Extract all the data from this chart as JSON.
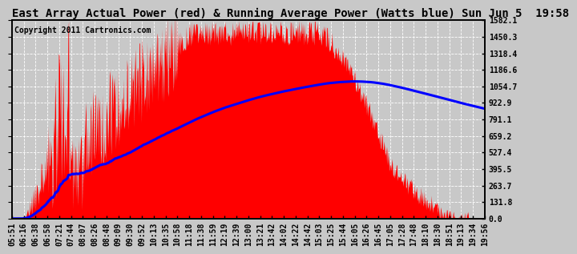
{
  "title": "East Array Actual Power (red) & Running Average Power (Watts blue) Sun Jun 5  19:58",
  "copyright": "Copyright 2011 Cartronics.com",
  "ylabel_right": [
    "0.0",
    "131.8",
    "263.7",
    "395.5",
    "527.4",
    "659.2",
    "791.1",
    "922.9",
    "1054.7",
    "1186.6",
    "1318.4",
    "1450.3",
    "1582.1"
  ],
  "ymax": 1582.1,
  "ymin": 0.0,
  "yticks": [
    0.0,
    131.8,
    263.7,
    395.5,
    527.4,
    659.2,
    791.1,
    922.9,
    1054.7,
    1186.6,
    1318.4,
    1450.3,
    1582.1
  ],
  "bg_color": "#c8c8c8",
  "plot_bg_color": "#c8c8c8",
  "actual_color": "red",
  "average_color": "blue",
  "grid_color": "white",
  "title_fontsize": 10,
  "copyright_fontsize": 7,
  "tick_fontsize": 7,
  "x_labels": [
    "05:51",
    "06:16",
    "06:38",
    "06:58",
    "07:21",
    "07:44",
    "08:07",
    "08:26",
    "08:48",
    "09:09",
    "09:30",
    "09:52",
    "10:13",
    "10:35",
    "10:58",
    "11:18",
    "11:38",
    "11:59",
    "12:19",
    "12:39",
    "13:00",
    "13:21",
    "13:42",
    "14:02",
    "14:22",
    "14:42",
    "15:03",
    "15:25",
    "15:44",
    "16:05",
    "16:26",
    "16:45",
    "17:05",
    "17:28",
    "17:48",
    "18:10",
    "18:30",
    "18:51",
    "19:13",
    "19:34",
    "19:56"
  ]
}
